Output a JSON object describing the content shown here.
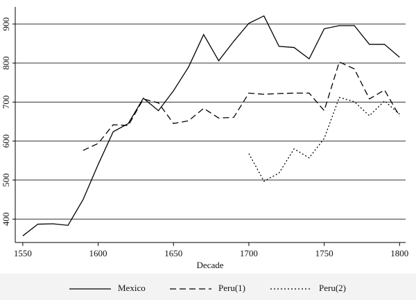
{
  "chart_data": {
    "type": "line",
    "x_label": "Decade",
    "x": [
      1550,
      1560,
      1570,
      1580,
      1590,
      1600,
      1610,
      1620,
      1630,
      1640,
      1650,
      1660,
      1670,
      1680,
      1690,
      1700,
      1710,
      1720,
      1730,
      1740,
      1750,
      1760,
      1770,
      1780,
      1790,
      1800
    ],
    "series": [
      {
        "name": "Mexico",
        "color": "#000000",
        "dash": "solid",
        "values": [
          357,
          387,
          388,
          384,
          450,
          540,
          624,
          645,
          710,
          678,
          729,
          790,
          873,
          806,
          856,
          902,
          921,
          843,
          840,
          811,
          888,
          896,
          896,
          848,
          848,
          815
        ]
      },
      {
        "name": "Peru(1)",
        "color": "#000000",
        "dash": "dashed",
        "values": [
          null,
          null,
          null,
          null,
          576,
          594,
          642,
          640,
          708,
          698,
          645,
          652,
          684,
          659,
          661,
          723,
          720,
          722,
          723,
          723,
          678,
          803,
          785,
          708,
          731,
          664
        ]
      },
      {
        "name": "Peru(2)",
        "color": "#000000",
        "dash": "dotted",
        "values": [
          null,
          null,
          null,
          null,
          null,
          null,
          null,
          null,
          null,
          null,
          null,
          null,
          null,
          null,
          null,
          568,
          497,
          518,
          580,
          557,
          607,
          712,
          701,
          665,
          703,
          669
        ]
      }
    ],
    "xlim": [
      1545,
      1804
    ],
    "xticks": [
      1550,
      1600,
      1650,
      1700,
      1750,
      1800
    ],
    "ylim": [
      340,
      944
    ],
    "yticks": [
      400,
      500,
      600,
      700,
      800,
      900
    ],
    "grid": true,
    "legend": "bottom"
  }
}
